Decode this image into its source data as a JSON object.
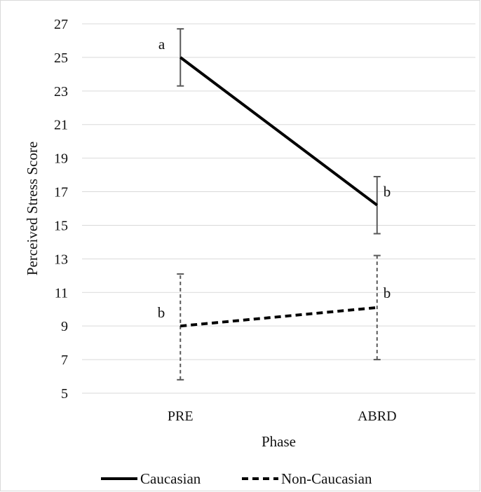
{
  "chart_data": {
    "type": "line",
    "xlabel": "Phase",
    "ylabel": "Perceived Stress Score",
    "categories": [
      "PRE",
      "ABRD"
    ],
    "ylim": [
      5,
      27
    ],
    "yticks": [
      5,
      7,
      9,
      11,
      13,
      15,
      17,
      19,
      21,
      23,
      25,
      27
    ],
    "grid": true,
    "legend_position": "bottom",
    "series": [
      {
        "name": "Caucasian",
        "style": "solid",
        "color": "#000000",
        "values": [
          25.0,
          16.2
        ],
        "error_low": [
          23.3,
          14.5
        ],
        "error_high": [
          26.7,
          17.9
        ],
        "annotations": [
          "a",
          "b"
        ]
      },
      {
        "name": "Non-Caucasian",
        "style": "dashed",
        "color": "#000000",
        "values": [
          9.0,
          10.1
        ],
        "error_low": [
          5.8,
          7.0
        ],
        "error_high": [
          12.1,
          13.2
        ],
        "annotations": [
          "b",
          "b"
        ]
      }
    ]
  }
}
